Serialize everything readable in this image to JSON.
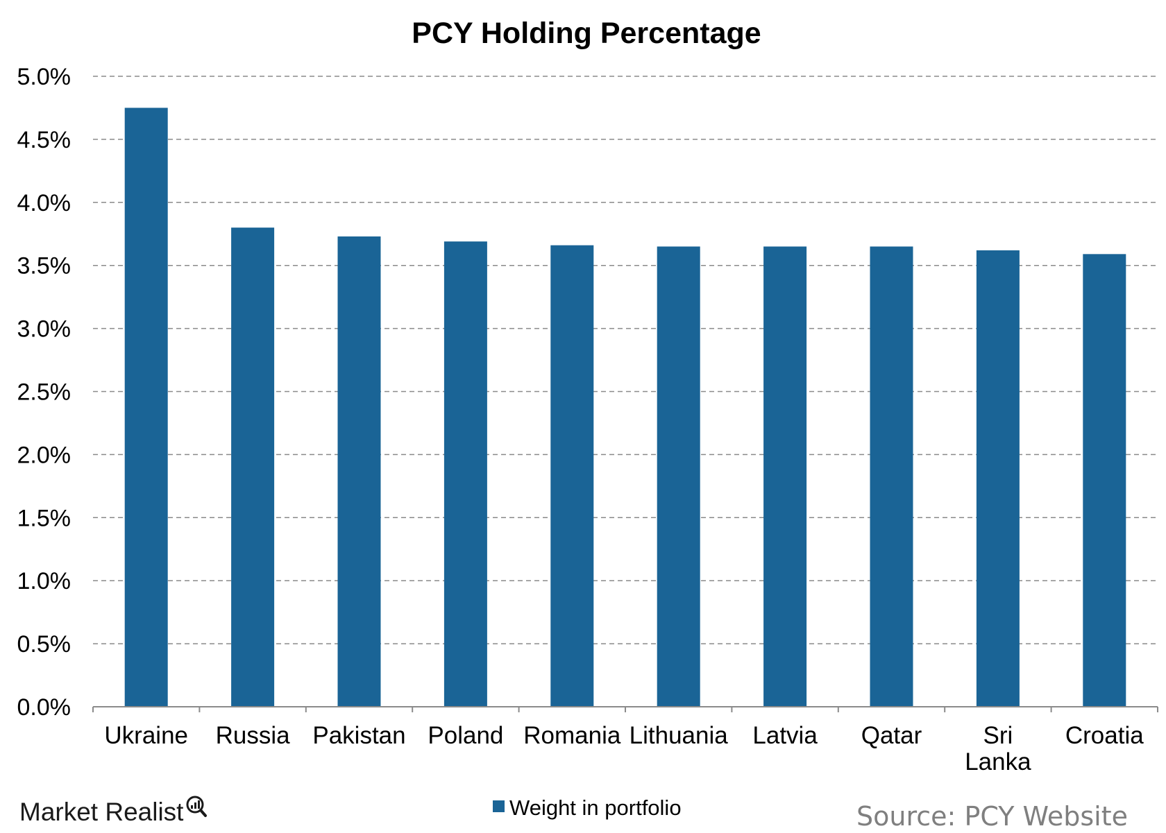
{
  "chart_data": {
    "type": "bar",
    "title": "PCY Holding Percentage",
    "categories": [
      "Ukraine",
      "Russia",
      "Pakistan",
      "Poland",
      "Romania",
      "Lithuania",
      "Latvia",
      "Qatar",
      "Sri Lanka",
      "Croatia"
    ],
    "series": [
      {
        "name": "Weight in portfolio",
        "color": "#1a6496",
        "values": [
          4.75,
          3.8,
          3.73,
          3.69,
          3.66,
          3.65,
          3.65,
          3.65,
          3.62,
          3.59
        ]
      }
    ],
    "ylim": [
      0,
      5.0
    ],
    "yticks": [
      "0.0%",
      "0.5%",
      "1.0%",
      "1.5%",
      "2.0%",
      "2.5%",
      "3.0%",
      "3.5%",
      "4.0%",
      "4.5%",
      "5.0%"
    ],
    "grid": true,
    "legend_position": "bottom"
  },
  "branding": {
    "logo_text": "Market Realist"
  },
  "source_note": "Source: PCY Website"
}
